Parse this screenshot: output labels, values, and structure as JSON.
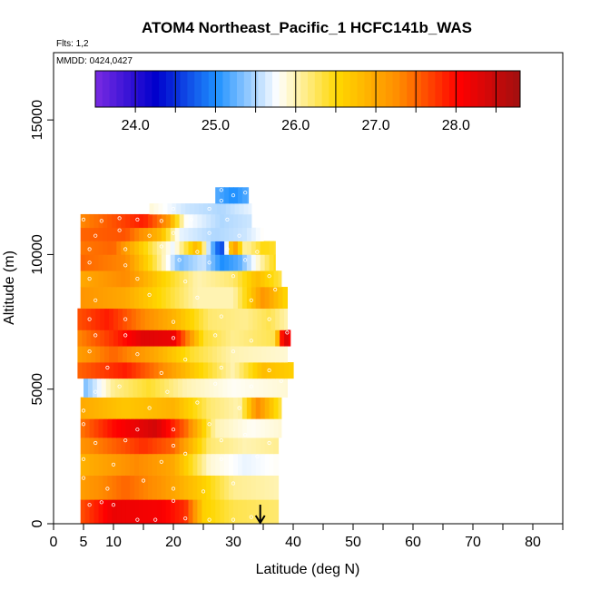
{
  "chart_data": {
    "type": "heatmap",
    "title": "ATOM4 Northeast_Pacific_1 HCFC141b_WAS",
    "subtitle": "Flts: 1,2",
    "annotation": "MMDD: 0424,0427",
    "xlabel": "Latitude (deg N)",
    "ylabel": "Altitude (m)",
    "xlim": [
      0,
      85
    ],
    "ylim": [
      0,
      17500
    ],
    "x_ticks": [
      0,
      5,
      10,
      20,
      30,
      40,
      50,
      60,
      70,
      80
    ],
    "y_ticks": [
      0,
      5000,
      10000,
      15000
    ],
    "colorbar": {
      "range": [
        23.5,
        28.8
      ],
      "ticks": [
        "24.0",
        "25.0",
        "26.0",
        "27.0",
        "28.0"
      ],
      "tick_values": [
        24,
        25,
        26,
        27,
        28
      ],
      "colors": [
        "#7a2be2",
        "#0000cc",
        "#1e90ff",
        "#ffffff",
        "#ffd700",
        "#ff8c00",
        "#ff0000",
        "#a01010"
      ]
    },
    "marker": {
      "type": "arrow-down",
      "x": 34.5,
      "label": ""
    },
    "rows": [
      {
        "alt": [
          0,
          900
        ],
        "lat": [
          4.5,
          37.5
        ],
        "keys": [
          [
            4.5,
            27.6
          ],
          [
            10,
            28.2
          ],
          [
            18,
            28.1
          ],
          [
            22,
            27.8
          ],
          [
            25,
            26.6
          ],
          [
            30,
            26.3
          ],
          [
            37.5,
            26.2
          ]
        ]
      },
      {
        "alt": [
          900,
          1800
        ],
        "lat": [
          4.5,
          37.5
        ],
        "keys": [
          [
            4.5,
            27.1
          ],
          [
            12,
            27.5
          ],
          [
            18,
            27.2
          ],
          [
            24,
            26.7
          ],
          [
            30,
            26.1
          ],
          [
            37.5,
            26.0
          ]
        ]
      },
      {
        "alt": [
          1800,
          2600
        ],
        "lat": [
          4.5,
          37.5
        ],
        "keys": [
          [
            4.5,
            26.9
          ],
          [
            14,
            27.3
          ],
          [
            20,
            27.0
          ],
          [
            26,
            25.9
          ],
          [
            32,
            25.7
          ],
          [
            37.5,
            25.8
          ]
        ]
      },
      {
        "alt": [
          2600,
          3200
        ],
        "lat": [
          4.5,
          37.5
        ],
        "keys": [
          [
            4.5,
            27.2
          ],
          [
            15,
            27.8
          ],
          [
            20,
            27.5
          ],
          [
            26,
            26.2
          ],
          [
            32,
            26.0
          ],
          [
            37.5,
            26.1
          ]
        ]
      },
      {
        "alt": [
          3200,
          3900
        ],
        "lat": [
          4.5,
          38
        ],
        "keys": [
          [
            4.5,
            27.4
          ],
          [
            10,
            28.0
          ],
          [
            17,
            28.4
          ],
          [
            22,
            27.5
          ],
          [
            27,
            26.0
          ],
          [
            33,
            25.8
          ],
          [
            38,
            25.9
          ]
        ]
      },
      {
        "alt": [
          3900,
          4700
        ],
        "lat": [
          4.5,
          38
        ],
        "keys": [
          [
            4.5,
            27.0
          ],
          [
            12,
            26.7
          ],
          [
            20,
            26.9
          ],
          [
            26,
            26.2
          ],
          [
            31,
            26.0
          ],
          [
            34,
            27.3
          ],
          [
            38,
            26.3
          ]
        ]
      },
      {
        "alt": [
          4700,
          5400
        ],
        "lat": [
          5,
          39
        ],
        "keys": [
          [
            5,
            25.3
          ],
          [
            10,
            26.1
          ],
          [
            16,
            26.4
          ],
          [
            22,
            26.0
          ],
          [
            30,
            25.8
          ],
          [
            39,
            25.9
          ]
        ]
      },
      {
        "alt": [
          5400,
          6000
        ],
        "lat": [
          4,
          40
        ],
        "keys": [
          [
            4,
            27.5
          ],
          [
            12,
            27.9
          ],
          [
            18,
            27.3
          ],
          [
            24,
            26.6
          ],
          [
            30,
            26.0
          ],
          [
            35,
            26.8
          ],
          [
            40,
            26.6
          ]
        ]
      },
      {
        "alt": [
          6000,
          6600
        ],
        "lat": [
          4,
          39
        ],
        "keys": [
          [
            4,
            27.1
          ],
          [
            10,
            27.5
          ],
          [
            17,
            27.0
          ],
          [
            23,
            26.4
          ],
          [
            30,
            26.0
          ],
          [
            39,
            25.9
          ]
        ]
      },
      {
        "alt": [
          6600,
          7200
        ],
        "lat": [
          4,
          39.5
        ],
        "keys": [
          [
            4,
            27.3
          ],
          [
            10,
            27.8
          ],
          [
            15,
            28.3
          ],
          [
            20,
            28.2
          ],
          [
            25,
            26.4
          ],
          [
            30,
            26.1
          ],
          [
            37,
            26.3
          ],
          [
            38.5,
            28.5
          ],
          [
            39.5,
            28.0
          ]
        ]
      },
      {
        "alt": [
          7200,
          8000
        ],
        "lat": [
          4,
          39
        ],
        "keys": [
          [
            4,
            27.6
          ],
          [
            9,
            27.9
          ],
          [
            14,
            27.4
          ],
          [
            20,
            26.9
          ],
          [
            26,
            26.2
          ],
          [
            32,
            26.1
          ],
          [
            36,
            26.3
          ],
          [
            39,
            26.0
          ]
        ]
      },
      {
        "alt": [
          8000,
          8800
        ],
        "lat": [
          4.5,
          39
        ],
        "keys": [
          [
            4.5,
            27.2
          ],
          [
            12,
            27.0
          ],
          [
            18,
            26.5
          ],
          [
            24,
            26.0
          ],
          [
            30,
            26.0
          ],
          [
            35,
            27.2
          ],
          [
            39,
            26.5
          ]
        ]
      },
      {
        "alt": [
          8800,
          9400
        ],
        "lat": [
          4.5,
          38
        ],
        "keys": [
          [
            4.5,
            27.0
          ],
          [
            12,
            27.3
          ],
          [
            18,
            26.6
          ],
          [
            24,
            26.0
          ],
          [
            30,
            26.2
          ],
          [
            34,
            26.8
          ],
          [
            38,
            26.3
          ]
        ]
      },
      {
        "alt": [
          9400,
          10000
        ],
        "lat": [
          4.5,
          37
        ],
        "keys": [
          [
            4.5,
            27.5
          ],
          [
            12,
            27.3
          ],
          [
            17,
            26.3
          ],
          [
            21,
            25.3
          ],
          [
            25,
            25.6
          ],
          [
            28,
            25.0
          ],
          [
            31,
            25.2
          ],
          [
            35,
            26.1
          ],
          [
            37,
            26.5
          ]
        ]
      },
      {
        "alt": [
          10000,
          10500
        ],
        "lat": [
          4.5,
          37
        ],
        "keys": [
          [
            4.5,
            27.4
          ],
          [
            10,
            27.5
          ],
          [
            17,
            26.2
          ],
          [
            20,
            25.7
          ],
          [
            24,
            26.9
          ],
          [
            26,
            25.5
          ],
          [
            28,
            24.5
          ],
          [
            30,
            27.3
          ],
          [
            32,
            26.0
          ],
          [
            35,
            26.5
          ],
          [
            37,
            26.4
          ]
        ]
      },
      {
        "alt": [
          10500,
          11000
        ],
        "lat": [
          4.5,
          35
        ],
        "keys": [
          [
            4.5,
            27.5
          ],
          [
            12,
            27.6
          ],
          [
            18,
            26.8
          ],
          [
            21,
            25.7
          ],
          [
            27,
            25.5
          ],
          [
            32,
            25.6
          ],
          [
            35,
            25.8
          ]
        ]
      },
      {
        "alt": [
          11000,
          11500
        ],
        "lat": [
          4.5,
          33
        ],
        "keys": [
          [
            4.5,
            27.3
          ],
          [
            10,
            27.6
          ],
          [
            15,
            27.9
          ],
          [
            19,
            27.2
          ],
          [
            22,
            25.8
          ],
          [
            28,
            25.5
          ],
          [
            33,
            25.6
          ]
        ]
      },
      {
        "alt": [
          11500,
          11900
        ],
        "lat": [
          16,
          33
        ],
        "keys": [
          [
            16,
            25.9
          ],
          [
            22,
            25.6
          ],
          [
            28,
            25.5
          ],
          [
            33,
            25.7
          ]
        ]
      },
      {
        "alt": [
          11900,
          12500
        ],
        "lat": [
          27,
          32.5
        ],
        "keys": [
          [
            27,
            25.2
          ],
          [
            30,
            25.0
          ],
          [
            32.5,
            25.2
          ]
        ]
      }
    ],
    "samples": [
      [
        6,
        700
      ],
      [
        8,
        800
      ],
      [
        10,
        700
      ],
      [
        14,
        150
      ],
      [
        17,
        150
      ],
      [
        20,
        850
      ],
      [
        22,
        200
      ],
      [
        26,
        150
      ],
      [
        30,
        150
      ],
      [
        33,
        250
      ],
      [
        5,
        1700
      ],
      [
        9,
        1300
      ],
      [
        15,
        1600
      ],
      [
        20,
        1300
      ],
      [
        25,
        1200
      ],
      [
        30,
        1500
      ],
      [
        5,
        2400
      ],
      [
        10,
        2200
      ],
      [
        18,
        2300
      ],
      [
        22,
        2600
      ],
      [
        28,
        2400
      ],
      [
        34,
        2500
      ],
      [
        7,
        3000
      ],
      [
        12,
        3100
      ],
      [
        20,
        2900
      ],
      [
        28,
        3100
      ],
      [
        36,
        3000
      ],
      [
        5,
        3700
      ],
      [
        14,
        3500
      ],
      [
        20,
        3500
      ],
      [
        26,
        3700
      ],
      [
        32,
        3300
      ],
      [
        5,
        4200
      ],
      [
        16,
        4300
      ],
      [
        24,
        4500
      ],
      [
        31,
        4300
      ],
      [
        7,
        4900
      ],
      [
        11,
        5100
      ],
      [
        19,
        4900
      ],
      [
        27,
        5200
      ],
      [
        33,
        5100
      ],
      [
        38,
        5300
      ],
      [
        9,
        5800
      ],
      [
        18,
        5600
      ],
      [
        28,
        5800
      ],
      [
        36,
        5700
      ],
      [
        6,
        6400
      ],
      [
        14,
        6300
      ],
      [
        22,
        6100
      ],
      [
        30,
        6400
      ],
      [
        7,
        7000
      ],
      [
        12,
        7000
      ],
      [
        20,
        6900
      ],
      [
        27,
        7000
      ],
      [
        33,
        6800
      ],
      [
        39,
        7100
      ],
      [
        6,
        7600
      ],
      [
        12,
        7600
      ],
      [
        20,
        7500
      ],
      [
        28,
        7700
      ],
      [
        36,
        7600
      ],
      [
        7,
        8300
      ],
      [
        16,
        8500
      ],
      [
        24,
        8400
      ],
      [
        33,
        8300
      ],
      [
        37,
        8700
      ],
      [
        6,
        9100
      ],
      [
        14,
        9100
      ],
      [
        22,
        9000
      ],
      [
        30,
        9200
      ],
      [
        36,
        9200
      ],
      [
        6,
        9700
      ],
      [
        12,
        9600
      ],
      [
        21,
        9800
      ],
      [
        26,
        9700
      ],
      [
        32,
        9800
      ],
      [
        6,
        10200
      ],
      [
        12,
        10200
      ],
      [
        18,
        10300
      ],
      [
        24,
        10100
      ],
      [
        29,
        10200
      ],
      [
        34,
        10100
      ],
      [
        7,
        10700
      ],
      [
        11,
        10900
      ],
      [
        16,
        10700
      ],
      [
        20,
        10800
      ],
      [
        26,
        10800
      ],
      [
        31,
        10700
      ],
      [
        5,
        11300
      ],
      [
        8,
        11250
      ],
      [
        11,
        11350
      ],
      [
        14,
        11300
      ],
      [
        18,
        11250
      ],
      [
        23,
        11300
      ],
      [
        29,
        11300
      ],
      [
        20,
        11700
      ],
      [
        26,
        11700
      ],
      [
        28,
        12000
      ],
      [
        30,
        12200
      ],
      [
        32,
        12300
      ],
      [
        28,
        12400
      ]
    ]
  }
}
